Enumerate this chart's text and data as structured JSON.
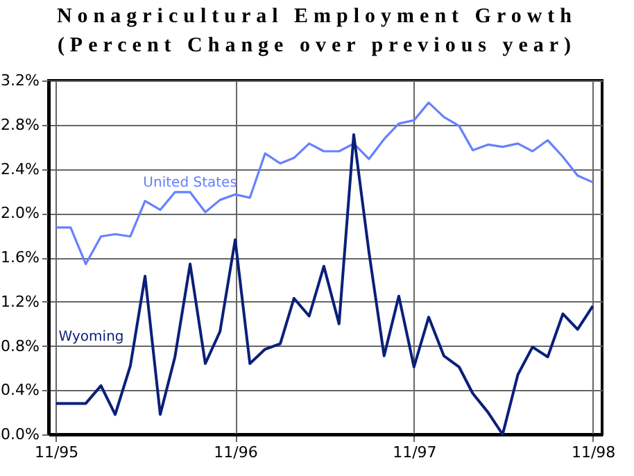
{
  "chart_data": {
    "type": "line",
    "title": "Nonagricultural Employment Growth",
    "subtitle": "(Percent Change over previous year)",
    "x": [
      "1995-11",
      "1995-12",
      "1996-01",
      "1996-02",
      "1996-03",
      "1996-04",
      "1996-05",
      "1996-06",
      "1996-07",
      "1996-08",
      "1996-09",
      "1996-10",
      "1996-11",
      "1996-12",
      "1997-01",
      "1997-02",
      "1997-03",
      "1997-04",
      "1997-05",
      "1997-06",
      "1997-07",
      "1997-08",
      "1997-09",
      "1997-10",
      "1997-11",
      "1997-12",
      "1998-01",
      "1998-02",
      "1998-03",
      "1998-04",
      "1998-05",
      "1998-06",
      "1998-07",
      "1998-08",
      "1998-09",
      "1998-10",
      "1998-11"
    ],
    "series": [
      {
        "name": "United States",
        "color": "#6680ff",
        "values": [
          1.87,
          1.87,
          1.54,
          1.79,
          1.81,
          1.79,
          2.11,
          2.03,
          2.19,
          2.19,
          2.01,
          2.12,
          2.17,
          2.14,
          2.54,
          2.45,
          2.5,
          2.63,
          2.56,
          2.56,
          2.63,
          2.49,
          2.67,
          2.81,
          2.84,
          3.0,
          2.87,
          2.79,
          2.57,
          2.62,
          2.6,
          2.63,
          2.56,
          2.66,
          2.51,
          2.34,
          2.28
        ]
      },
      {
        "name": "Wyoming",
        "color": "#0a1f7a",
        "values": [
          0.28,
          0.28,
          0.28,
          0.44,
          0.18,
          0.62,
          1.43,
          0.18,
          0.7,
          1.54,
          0.64,
          0.93,
          1.76,
          0.64,
          0.77,
          0.82,
          1.23,
          1.07,
          1.52,
          1.0,
          2.71,
          1.65,
          0.71,
          1.25,
          0.61,
          1.06,
          0.71,
          0.61,
          0.37,
          0.2,
          0.0,
          0.54,
          0.79,
          0.7,
          1.09,
          0.95,
          1.16
        ]
      }
    ],
    "xlim": [
      "1995-10-17",
      "1998-11-20"
    ],
    "xticks": [
      {
        "value": "1995-11",
        "label": "11/95"
      },
      {
        "value": "1996-11",
        "label": "11/96"
      },
      {
        "value": "1997-11",
        "label": "11/97"
      },
      {
        "value": "1998-11",
        "label": "11/98"
      }
    ],
    "ylim": [
      0,
      3.2
    ],
    "yticks": [
      {
        "value": 0,
        "label": "0.0%"
      },
      {
        "value": 0.4,
        "label": "0.4%"
      },
      {
        "value": 0.8,
        "label": "0.8%"
      },
      {
        "value": 1.2,
        "label": "1.2%"
      },
      {
        "value": 1.6,
        "label": "1.6%"
      },
      {
        "value": 2.0,
        "label": "2.0%"
      },
      {
        "value": 2.4,
        "label": "2.4%"
      },
      {
        "value": 2.8,
        "label": "2.8%"
      },
      {
        "value": 3.2,
        "label": "3.2%"
      }
    ],
    "grid": true,
    "legend": false,
    "marker": "none",
    "line_style": "solid"
  }
}
